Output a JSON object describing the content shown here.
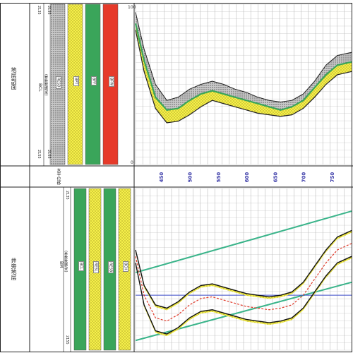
{
  "left_panel": {
    "top_title": "地层剖面",
    "bottom_title": "井旁地层",
    "top_curve_label": "BCL",
    "top_curve_sub": "(参数数据/米)",
    "top_depth_min": "2135",
    "top_depth_max": "2155",
    "bottom_curve_label": "BM",
    "bottom_curve_sub": "(参数数据/米)",
    "bottom_depth_min": "2135",
    "bottom_depth_max": "2155"
  },
  "top_tracks": [
    {
      "label": "RESD",
      "color": "#b0b0b0",
      "pattern": "gray"
    },
    {
      "label": "BPT",
      "color": "#f5f04a",
      "pattern": "dots"
    },
    {
      "label": "BFF",
      "color": "#3aa55a",
      "pattern": "solid"
    },
    {
      "label": "BFW",
      "color": "#e63a2a",
      "pattern": "solid"
    }
  ],
  "bottom_tracks": [
    {
      "label": "BCL",
      "color": "#3aa55a",
      "pattern": "solid"
    },
    {
      "label": "RESL",
      "color": "#f0e64a",
      "pattern": "dots"
    },
    {
      "label": "RESB",
      "color": "#3aa55a",
      "pattern": "solid"
    },
    {
      "label": "BCH",
      "color": "#f0e64a",
      "pattern": "dots"
    }
  ],
  "middle_label": "水平位移",
  "chart_data": [
    {
      "type": "area",
      "title": "",
      "y_top_label": "100",
      "y_bottom_label": "0",
      "xlim": [
        405,
        785
      ],
      "ylim": [
        0,
        100
      ],
      "x": [
        405,
        420,
        440,
        460,
        480,
        500,
        520,
        540,
        560,
        580,
        600,
        620,
        640,
        660,
        680,
        700,
        720,
        740,
        760,
        785
      ],
      "series": [
        {
          "name": "",
          "values": [
            95,
            72,
            50,
            40,
            42,
            47,
            50,
            52,
            50,
            47,
            45,
            42,
            40,
            39,
            40,
            44,
            52,
            62,
            68,
            70
          ]
        },
        {
          "name": "",
          "values": [
            88,
            65,
            42,
            34,
            35,
            40,
            44,
            46,
            44,
            42,
            40,
            38,
            36,
            34,
            36,
            40,
            48,
            56,
            62,
            64
          ]
        },
        {
          "name": "",
          "values": [
            84,
            58,
            35,
            26,
            27,
            31,
            36,
            40,
            38,
            36,
            34,
            32,
            31,
            30,
            31,
            35,
            42,
            50,
            56,
            58
          ]
        }
      ]
    },
    {
      "type": "line",
      "title": "",
      "x_ticks": [
        450,
        500,
        550,
        600,
        650,
        700,
        750
      ],
      "xlim": [
        405,
        785
      ],
      "ylim": [
        0,
        100
      ],
      "x": [
        405,
        420,
        440,
        460,
        480,
        500,
        520,
        540,
        560,
        580,
        600,
        620,
        640,
        660,
        680,
        700,
        720,
        740,
        760,
        785
      ],
      "series": [
        {
          "name": "",
          "values": [
            62,
            40,
            28,
            26,
            30,
            36,
            40,
            41,
            39,
            37,
            35,
            34,
            33,
            34,
            36,
            42,
            52,
            62,
            70,
            74
          ]
        },
        {
          "name": "",
          "values": [
            58,
            34,
            20,
            18,
            22,
            28,
            32,
            33,
            31,
            29,
            27,
            26,
            25,
            26,
            28,
            34,
            44,
            54,
            62,
            66
          ]
        },
        {
          "name": "",
          "values": [
            54,
            28,
            12,
            10,
            14,
            20,
            24,
            25,
            23,
            21,
            19,
            18,
            17,
            18,
            20,
            26,
            36,
            46,
            54,
            58
          ]
        }
      ],
      "trend_upper": [
        [
          405,
          48
        ],
        [
          785,
          86
        ]
      ],
      "trend_lower": [
        [
          405,
          6
        ],
        [
          785,
          42
        ]
      ],
      "reference_line": 34
    }
  ]
}
